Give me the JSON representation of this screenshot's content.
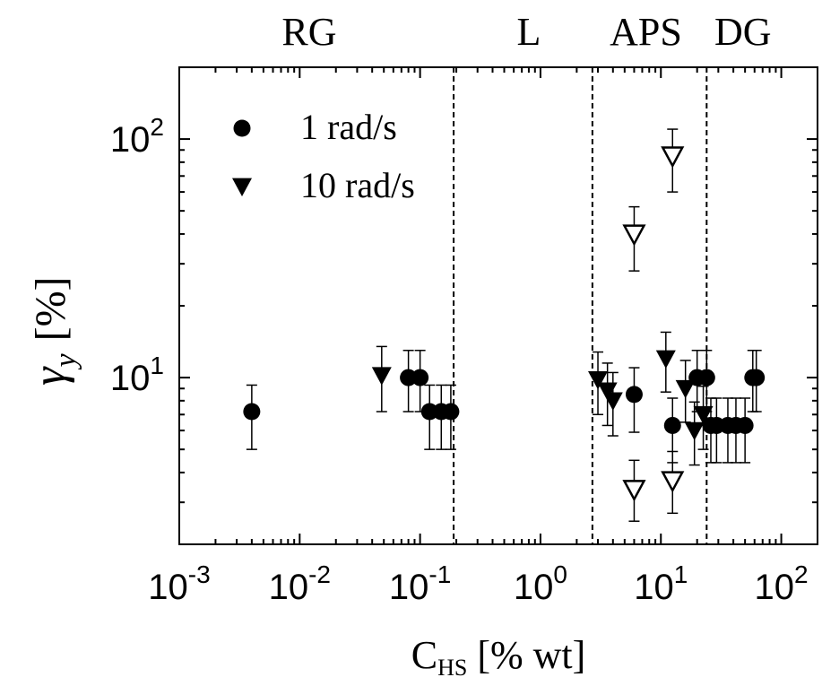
{
  "chart_data": {
    "type": "scatter",
    "xscale": "log",
    "yscale": "log",
    "xlim": [
      0.001,
      200
    ],
    "ylim": [
      2,
      200
    ],
    "grid": false,
    "legend_placement": "top-left",
    "x_label": {
      "main": "C",
      "sub": "HS",
      "rest": " [% wt]"
    },
    "y_label": {
      "main": "γ",
      "sub": "y",
      "rest": "[%]"
    },
    "x_ticks": [
      {
        "value": 0.001,
        "base": "10",
        "exp": "-3"
      },
      {
        "value": 0.01,
        "base": "10",
        "exp": "-2"
      },
      {
        "value": 0.1,
        "base": "10",
        "exp": "-1"
      },
      {
        "value": 1,
        "base": "10",
        "exp": "0"
      },
      {
        "value": 10,
        "base": "10",
        "exp": "1"
      },
      {
        "value": 100,
        "base": "10",
        "exp": "2"
      }
    ],
    "y_ticks": [
      {
        "value": 10,
        "base": "10",
        "exp": "1"
      },
      {
        "value": 100,
        "base": "10",
        "exp": "2"
      }
    ],
    "regions": [
      {
        "label": "RG",
        "x": 0.012
      },
      {
        "label": "L",
        "x": 0.8
      },
      {
        "label": "APS",
        "x": 7.5
      },
      {
        "label": "DG",
        "x": 48
      }
    ],
    "boundaries": [
      0.19,
      2.7,
      24
    ],
    "series": [
      {
        "name": "1 rad/s",
        "marker": "circle-filled",
        "points": [
          {
            "x": 0.004,
            "y": 7.2,
            "yerr": [
              5.0,
              9.3
            ]
          },
          {
            "x": 0.08,
            "y": 10.0,
            "yerr": [
              7.2,
              13.0
            ]
          },
          {
            "x": 0.1,
            "y": 10.0,
            "yerr": [
              7.2,
              13.0
            ]
          },
          {
            "x": 0.12,
            "y": 7.2,
            "yerr": [
              5.0,
              9.3
            ]
          },
          {
            "x": 0.15,
            "y": 7.2,
            "yerr": [
              5.0,
              9.3
            ]
          },
          {
            "x": 0.18,
            "y": 7.2,
            "yerr": [
              5.0,
              9.3
            ]
          },
          {
            "x": 6,
            "y": 8.5,
            "yerr": [
              5.9,
              11.0
            ]
          },
          {
            "x": 12.5,
            "y": 6.3,
            "yerr": [
              4.4,
              8.2
            ]
          },
          {
            "x": 20,
            "y": 10.0,
            "yerr": [
              7.2,
              13.0
            ]
          },
          {
            "x": 24,
            "y": 10.0,
            "yerr": [
              7.2,
              13.0
            ]
          },
          {
            "x": 26,
            "y": 6.3,
            "yerr": [
              4.4,
              8.2
            ]
          },
          {
            "x": 29,
            "y": 6.3,
            "yerr": [
              4.4,
              8.2
            ]
          },
          {
            "x": 36,
            "y": 6.3,
            "yerr": [
              4.4,
              8.2
            ]
          },
          {
            "x": 42,
            "y": 6.3,
            "yerr": [
              4.4,
              8.2
            ]
          },
          {
            "x": 50,
            "y": 6.3,
            "yerr": [
              4.4,
              8.2
            ]
          },
          {
            "x": 58,
            "y": 10.0,
            "yerr": [
              7.2,
              13.0
            ]
          },
          {
            "x": 62,
            "y": 10.0,
            "yerr": [
              7.2,
              13.0
            ]
          }
        ]
      },
      {
        "name": "10 rad/s",
        "marker": "triangle-down-filled",
        "points": [
          {
            "x": 0.048,
            "y": 10.2,
            "yerr": [
              7.2,
              13.5
            ]
          },
          {
            "x": 3.0,
            "y": 9.8,
            "yerr": [
              7.0,
              12.8
            ]
          },
          {
            "x": 3.6,
            "y": 8.8,
            "yerr": [
              6.3,
              11.5
            ]
          },
          {
            "x": 4.0,
            "y": 8.0,
            "yerr": [
              5.7,
              10.5
            ]
          },
          {
            "x": 11,
            "y": 12.0,
            "yerr": [
              8.7,
              15.5
            ]
          },
          {
            "x": 16,
            "y": 9.0,
            "yerr": [
              6.5,
              11.8
            ]
          },
          {
            "x": 19,
            "y": 6.0,
            "yerr": [
              4.3,
              7.9
            ]
          },
          {
            "x": 22.5,
            "y": 7.0,
            "yerr": [
              5.0,
              9.2
            ]
          }
        ]
      },
      {
        "name": "",
        "marker": "triangle-down-open",
        "points": [
          {
            "x": 6,
            "y": 40,
            "yerr": [
              28,
              52
            ]
          },
          {
            "x": 12.5,
            "y": 85,
            "yerr": [
              60,
              110
            ]
          },
          {
            "x": 6,
            "y": 3.4,
            "yerr": [
              2.5,
              4.5
            ]
          },
          {
            "x": 12.5,
            "y": 3.7,
            "yerr": [
              2.7,
              4.9
            ]
          }
        ]
      }
    ]
  }
}
